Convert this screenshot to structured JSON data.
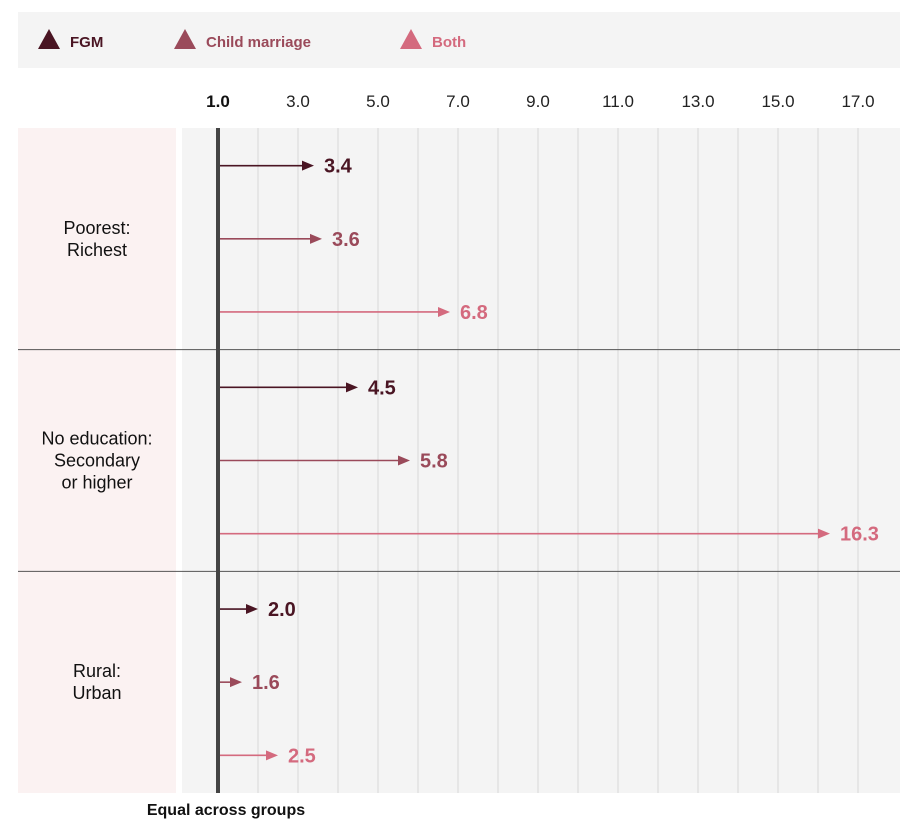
{
  "legend": [
    {
      "label": "FGM",
      "color": "#4a1523",
      "icon": "triangle-icon"
    },
    {
      "label": "Child marriage",
      "color": "#9a4a5a",
      "icon": "triangle-icon"
    },
    {
      "label": "Both",
      "color": "#d46a7e",
      "icon": "triangle-icon"
    }
  ],
  "footer_label": "Equal across groups",
  "chart_data": {
    "type": "bar",
    "orientation": "horizontal-arrows",
    "baseline": 1.0,
    "xlim": [
      1.0,
      17.0
    ],
    "ticks": [
      "1.0",
      "3.0",
      "5.0",
      "7.0",
      "9.0",
      "11.0",
      "13.0",
      "15.0",
      "17.0"
    ],
    "grid": true,
    "categories": [
      "Poorest:\nRichest",
      "No education:\nSecondary\nor higher",
      "Rural:\nUrban"
    ],
    "series": [
      {
        "name": "FGM",
        "color": "#4a1523",
        "values": [
          3.4,
          4.5,
          2.0
        ],
        "labels": [
          "3.4",
          "4.5",
          "2.0"
        ]
      },
      {
        "name": "Child marriage",
        "color": "#9a4a5a",
        "values": [
          3.6,
          5.8,
          1.6
        ],
        "labels": [
          "3.6",
          "5.8",
          "1.6"
        ]
      },
      {
        "name": "Both",
        "color": "#d46a7e",
        "values": [
          6.8,
          16.3,
          2.5
        ],
        "labels": [
          "6.8",
          "16.3",
          "2.5"
        ]
      }
    ]
  }
}
